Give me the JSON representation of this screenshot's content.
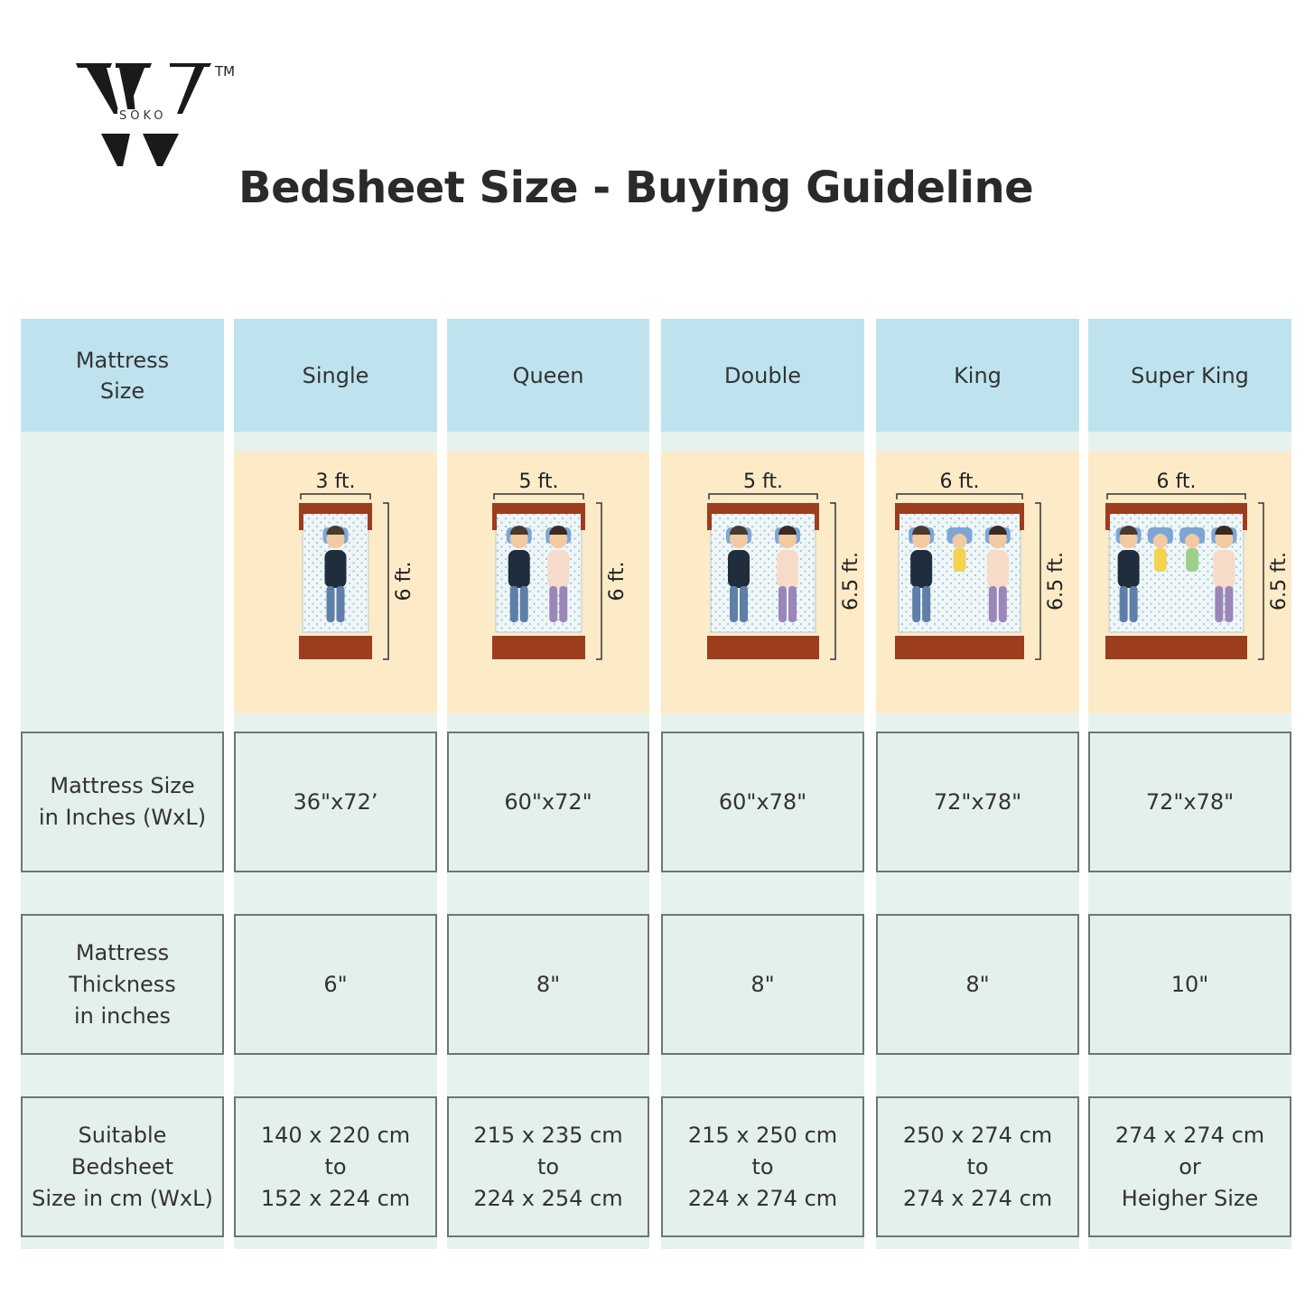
{
  "brand": {
    "logo_text": "SOKO",
    "trademark": "TM"
  },
  "title": "Bedsheet Size - Buying Guideline",
  "colors": {
    "header_bg": "#bee3ee",
    "cell_bg": "#e3f0ec",
    "image_bg": "#fdebc8",
    "bed_frame": "#9c3d1e"
  },
  "row_labels": {
    "size": "Mattress\nSize",
    "inches": "Mattress Size\nin Inches (WxL)",
    "thickness": "Mattress\nThickness\nin inches",
    "bedsheet": "Suitable\nBedsheet\nSize in cm (WxL)"
  },
  "columns": [
    {
      "name": "Single",
      "width_label": "3 ft.",
      "length_label": "6 ft.",
      "inches": "36\"x72’",
      "thickness": "6\"",
      "bedsheet": "140 x 220 cm\nto\n152 x 224 cm"
    },
    {
      "name": "Queen",
      "width_label": "5 ft.",
      "length_label": "6 ft.",
      "inches": "60\"x72\"",
      "thickness": "8\"",
      "bedsheet": "215 x 235 cm\nto\n224 x 254 cm"
    },
    {
      "name": "Double",
      "width_label": "5 ft.",
      "length_label": "6.5 ft.",
      "inches": "60\"x78\"",
      "thickness": "8\"",
      "bedsheet": "215 x 250 cm\nto\n224 x 274 cm"
    },
    {
      "name": "King",
      "width_label": "6 ft.",
      "length_label": "6.5 ft.",
      "inches": "72\"x78\"",
      "thickness": "8\"",
      "bedsheet": "250 x 274 cm\nto\n274 x 274 cm"
    },
    {
      "name": "Super King",
      "width_label": "6 ft.",
      "length_label": "6.5 ft.",
      "inches": "72\"x78\"",
      "thickness": "10\"",
      "bedsheet": "274 x 274 cm\nor\nHeigher Size"
    }
  ]
}
